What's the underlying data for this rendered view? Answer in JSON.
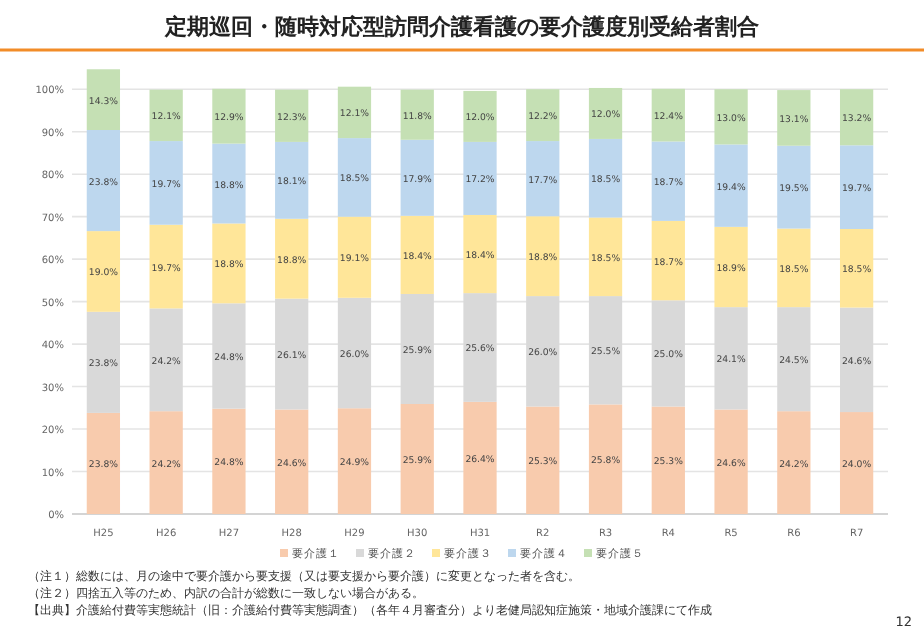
{
  "chart_data": {
    "type": "bar",
    "stacked": true,
    "title": "定期巡回・随時対応型訪問介護看護の要介護度別受給者割合",
    "categories": [
      "H25",
      "H26",
      "H27",
      "H28",
      "H29",
      "H30",
      "H31",
      "R2",
      "R3",
      "R4",
      "R5",
      "R6",
      "R7"
    ],
    "series": [
      {
        "name": "要介護１",
        "color": "#f8cbad",
        "values": [
          23.8,
          24.2,
          24.8,
          24.6,
          24.9,
          25.9,
          26.4,
          25.3,
          25.8,
          25.3,
          24.6,
          24.2,
          24.0
        ],
        "value_labels": [
          "23.8%",
          "24.2%",
          "24.8%",
          "24.6%",
          "24.9%",
          "25.9%",
          "26.4%",
          "25.3%",
          "25.8%",
          "25.3%",
          "24.6%",
          "24.2%",
          "24.0%"
        ]
      },
      {
        "name": "要介護２",
        "color": "#d9d9d9",
        "values": [
          23.8,
          24.2,
          24.8,
          26.1,
          26.0,
          25.9,
          25.6,
          26.0,
          25.5,
          25.0,
          24.1,
          24.5,
          24.6
        ],
        "value_labels": [
          "23.8%",
          "24.2%",
          "24.8%",
          "26.1%",
          "26.0%",
          "25.9%",
          "25.6%",
          "26.0%",
          "25.5%",
          "25.0%",
          "24.1%",
          "24.5%",
          "24.6%"
        ]
      },
      {
        "name": "要介護３",
        "color": "#ffe699",
        "values": [
          19.0,
          19.7,
          18.8,
          18.8,
          19.1,
          18.4,
          18.4,
          18.8,
          18.5,
          18.7,
          18.9,
          18.5,
          18.5
        ],
        "value_labels": [
          "19.0%",
          "19.7%",
          "18.8%",
          "18.8%",
          "19.1%",
          "18.4%",
          "18.4%",
          "18.8%",
          "18.5%",
          "18.7%",
          "18.9%",
          "18.5%",
          "18.5%"
        ]
      },
      {
        "name": "要介護４",
        "color": "#bdd7ee",
        "values": [
          23.8,
          19.7,
          18.8,
          18.1,
          18.5,
          17.9,
          17.2,
          17.7,
          18.5,
          18.7,
          19.4,
          19.5,
          19.7
        ],
        "value_labels": [
          "23.8%",
          "19.7%",
          "18.8%",
          "18.1%",
          "18.5%",
          "17.9%",
          "17.2%",
          "17.7%",
          "18.5%",
          "18.7%",
          "19.4%",
          "19.5%",
          "19.7%"
        ]
      },
      {
        "name": "要介護５",
        "color": "#c5e0b4",
        "values": [
          14.3,
          12.1,
          12.9,
          12.3,
          12.1,
          11.8,
          12.0,
          12.2,
          12.0,
          12.4,
          13.0,
          13.1,
          13.2
        ],
        "value_labels": [
          "14.3%",
          "12.1%",
          "12.9%",
          "12.3%",
          "12.1%",
          "11.8%",
          "12.0%",
          "12.2%",
          "12.0%",
          "12.4%",
          "13.0%",
          "13.1%",
          "13.2%"
        ]
      }
    ],
    "ylim": [
      0,
      105
    ],
    "yticks": [
      {
        "value": 0,
        "label": "0%"
      },
      {
        "value": 10,
        "label": "10%"
      },
      {
        "value": 20,
        "label": "20%"
      },
      {
        "value": 30,
        "label": "30%"
      },
      {
        "value": 40,
        "label": "40%"
      },
      {
        "value": 50,
        "label": "50%"
      },
      {
        "value": 60,
        "label": "60%"
      },
      {
        "value": 70,
        "label": "70%"
      },
      {
        "value": 80,
        "label": "80%"
      },
      {
        "value": 90,
        "label": "90%"
      },
      {
        "value": 100,
        "label": "100%"
      }
    ],
    "grid": "y",
    "legend": "bottom",
    "annotations": [
      "（注１）総数には、月の途中で要介護から要支援（又は要支援から要介護）に変更となった者を含む。",
      "（注２）四捨五入等のため、内訳の合計が総数に一致しない場合がある。",
      "【出典】介護給付費等実態統計（旧：介護給付費等実態調査）（各年４月審査分）より老健局認知症施策・地域介護課にて作成",
      "12"
    ]
  }
}
